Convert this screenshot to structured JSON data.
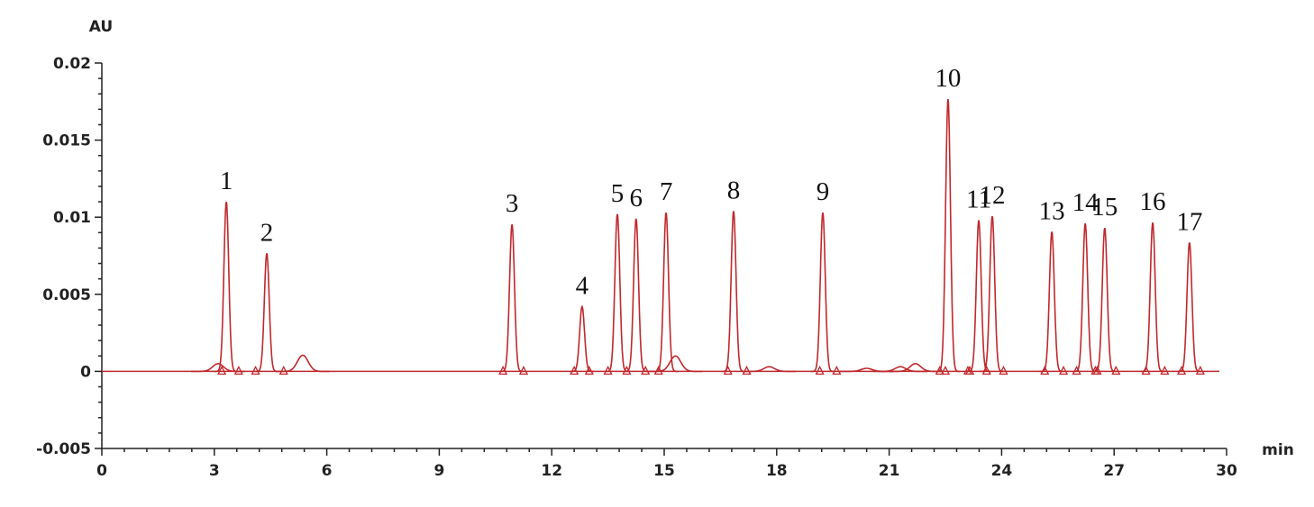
{
  "chart_data": {
    "type": "chromatogram",
    "y_label": "AU",
    "x_label": "min",
    "color": "#c0282c",
    "xlim": [
      0,
      30
    ],
    "xticks": [
      0,
      3,
      6,
      9,
      12,
      15,
      18,
      21,
      24,
      27,
      30
    ],
    "ylim": [
      -0.005,
      0.02
    ],
    "yticks": [
      -0.005,
      0,
      0.005,
      0.01,
      0.015,
      0.02
    ],
    "peaks": {
      "labels": [
        "1",
        "2",
        "3",
        "4",
        "5",
        "6",
        "7",
        "8",
        "9",
        "10",
        "11",
        "12",
        "13",
        "14",
        "15",
        "16",
        "17",
        null,
        null,
        null,
        null,
        null,
        null,
        null
      ],
      "x": [
        3.32,
        4.4,
        10.94,
        12.81,
        13.75,
        14.25,
        15.05,
        16.85,
        19.23,
        22.57,
        23.39,
        23.75,
        25.34,
        26.23,
        26.75,
        28.03,
        29.01,
        3.1,
        5.36,
        15.3,
        17.8,
        20.4,
        21.3,
        21.7
      ],
      "values": [
        0.011,
        0.00766,
        0.00953,
        0.0042,
        0.0102,
        0.0099,
        0.0103,
        0.0104,
        0.0103,
        0.01766,
        0.0098,
        0.01006,
        0.00906,
        0.0096,
        0.0093,
        0.00965,
        0.00836,
        0.0005,
        0.00105,
        0.001,
        0.0003,
        0.0002,
        0.0003,
        0.0005
      ]
    },
    "boundary_markers": [
      3.2,
      3.65,
      4.1,
      4.85,
      10.7,
      11.25,
      12.6,
      13.0,
      13.5,
      14.0,
      14.5,
      14.85,
      16.7,
      17.2,
      19.15,
      19.6,
      22.35,
      22.5,
      23.1,
      23.15,
      23.6,
      24.05,
      25.15,
      25.65,
      26.0,
      26.5,
      26.55,
      27.05,
      27.85,
      28.35,
      28.8,
      29.3
    ]
  }
}
